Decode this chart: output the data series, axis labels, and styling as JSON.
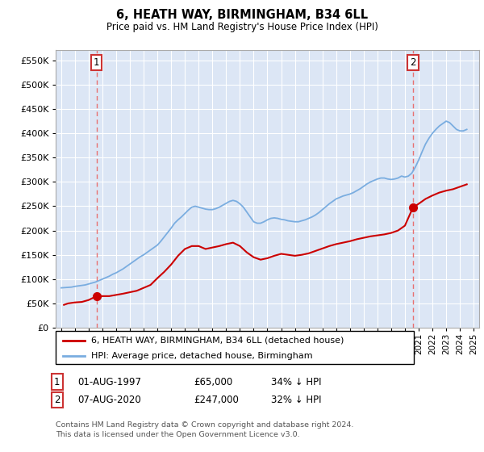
{
  "title": "6, HEATH WAY, BIRMINGHAM, B34 6LL",
  "subtitle": "Price paid vs. HM Land Registry's House Price Index (HPI)",
  "background_color": "#dce6f5",
  "plot_bg_color": "#dce6f5",
  "yticks": [
    0,
    50000,
    100000,
    150000,
    200000,
    250000,
    300000,
    350000,
    400000,
    450000,
    500000,
    550000
  ],
  "ylim": [
    0,
    572000
  ],
  "xlim_start": 1994.6,
  "xlim_end": 2025.4,
  "xtick_years": [
    1995,
    1996,
    1997,
    1998,
    1999,
    2000,
    2001,
    2002,
    2003,
    2004,
    2005,
    2006,
    2007,
    2008,
    2009,
    2010,
    2011,
    2012,
    2013,
    2014,
    2015,
    2016,
    2017,
    2018,
    2019,
    2020,
    2021,
    2022,
    2023,
    2024,
    2025
  ],
  "red_line_color": "#cc0000",
  "blue_line_color": "#7aade0",
  "dashed_line_color": "#e87070",
  "marker_color": "#cc0000",
  "transaction1": {
    "year": 1997.58,
    "price": 65000,
    "label": "1"
  },
  "transaction2": {
    "year": 2020.58,
    "price": 247000,
    "label": "2"
  },
  "legend_label_red": "6, HEATH WAY, BIRMINGHAM, B34 6LL (detached house)",
  "legend_label_blue": "HPI: Average price, detached house, Birmingham",
  "table_row1": [
    "1",
    "01-AUG-1997",
    "£65,000",
    "34% ↓ HPI"
  ],
  "table_row2": [
    "2",
    "07-AUG-2020",
    "£247,000",
    "32% ↓ HPI"
  ],
  "footer": "Contains HM Land Registry data © Crown copyright and database right 2024.\nThis data is licensed under the Open Government Licence v3.0.",
  "hpi_data_x": [
    1995.0,
    1995.25,
    1995.5,
    1995.75,
    1996.0,
    1996.25,
    1996.5,
    1996.75,
    1997.0,
    1997.25,
    1997.5,
    1997.75,
    1998.0,
    1998.25,
    1998.5,
    1998.75,
    1999.0,
    1999.25,
    1999.5,
    1999.75,
    2000.0,
    2000.25,
    2000.5,
    2000.75,
    2001.0,
    2001.25,
    2001.5,
    2001.75,
    2002.0,
    2002.25,
    2002.5,
    2002.75,
    2003.0,
    2003.25,
    2003.5,
    2003.75,
    2004.0,
    2004.25,
    2004.5,
    2004.75,
    2005.0,
    2005.25,
    2005.5,
    2005.75,
    2006.0,
    2006.25,
    2006.5,
    2006.75,
    2007.0,
    2007.25,
    2007.5,
    2007.75,
    2008.0,
    2008.25,
    2008.5,
    2008.75,
    2009.0,
    2009.25,
    2009.5,
    2009.75,
    2010.0,
    2010.25,
    2010.5,
    2010.75,
    2011.0,
    2011.25,
    2011.5,
    2011.75,
    2012.0,
    2012.25,
    2012.5,
    2012.75,
    2013.0,
    2013.25,
    2013.5,
    2013.75,
    2014.0,
    2014.25,
    2014.5,
    2014.75,
    2015.0,
    2015.25,
    2015.5,
    2015.75,
    2016.0,
    2016.25,
    2016.5,
    2016.75,
    2017.0,
    2017.25,
    2017.5,
    2017.75,
    2018.0,
    2018.25,
    2018.5,
    2018.75,
    2019.0,
    2019.25,
    2019.5,
    2019.75,
    2020.0,
    2020.25,
    2020.5,
    2020.75,
    2021.0,
    2021.25,
    2021.5,
    2021.75,
    2022.0,
    2022.25,
    2022.5,
    2022.75,
    2023.0,
    2023.25,
    2023.5,
    2023.75,
    2024.0,
    2024.25,
    2024.5
  ],
  "hpi_data_y": [
    82000,
    82500,
    83000,
    83500,
    85000,
    86000,
    87000,
    88000,
    90000,
    92000,
    94000,
    97000,
    100000,
    103000,
    106000,
    110000,
    113000,
    117000,
    121000,
    126000,
    131000,
    136000,
    141000,
    146000,
    150000,
    155000,
    160000,
    165000,
    170000,
    178000,
    187000,
    196000,
    205000,
    215000,
    222000,
    228000,
    235000,
    242000,
    248000,
    250000,
    248000,
    246000,
    244000,
    243000,
    243000,
    245000,
    248000,
    252000,
    256000,
    260000,
    262000,
    260000,
    255000,
    248000,
    238000,
    228000,
    218000,
    215000,
    215000,
    218000,
    222000,
    225000,
    226000,
    225000,
    223000,
    222000,
    220000,
    219000,
    218000,
    218000,
    220000,
    222000,
    225000,
    228000,
    232000,
    237000,
    243000,
    249000,
    255000,
    260000,
    265000,
    268000,
    271000,
    273000,
    275000,
    278000,
    282000,
    286000,
    291000,
    296000,
    300000,
    303000,
    306000,
    308000,
    308000,
    306000,
    305000,
    306000,
    308000,
    312000,
    310000,
    312000,
    318000,
    330000,
    345000,
    362000,
    378000,
    390000,
    400000,
    408000,
    415000,
    420000,
    425000,
    422000,
    415000,
    408000,
    405000,
    405000,
    408000
  ],
  "price_data_x": [
    1995.2,
    1995.5,
    1996.0,
    1996.5,
    1997.0,
    1997.58,
    1998.5,
    1999.5,
    2000.5,
    2001.5,
    2002.0,
    2002.5,
    2003.0,
    2003.5,
    2004.0,
    2004.5,
    2005.0,
    2005.5,
    2006.0,
    2006.5,
    2007.0,
    2007.5,
    2008.0,
    2008.5,
    2009.0,
    2009.5,
    2010.0,
    2010.5,
    2011.0,
    2011.5,
    2012.0,
    2012.5,
    2013.0,
    2013.5,
    2014.0,
    2014.5,
    2015.0,
    2015.5,
    2016.0,
    2016.5,
    2017.0,
    2017.5,
    2018.0,
    2018.5,
    2019.0,
    2019.5,
    2020.0,
    2020.58,
    2021.0,
    2021.5,
    2022.0,
    2022.5,
    2023.0,
    2023.5,
    2024.0,
    2024.5
  ],
  "price_data_y": [
    47000,
    50000,
    52000,
    53000,
    57000,
    65000,
    65000,
    70000,
    76000,
    88000,
    102000,
    115000,
    130000,
    148000,
    162000,
    168000,
    168000,
    162000,
    165000,
    168000,
    172000,
    175000,
    168000,
    155000,
    145000,
    140000,
    143000,
    148000,
    152000,
    150000,
    148000,
    150000,
    153000,
    158000,
    163000,
    168000,
    172000,
    175000,
    178000,
    182000,
    185000,
    188000,
    190000,
    192000,
    195000,
    200000,
    210000,
    247000,
    255000,
    265000,
    272000,
    278000,
    282000,
    285000,
    290000,
    295000
  ]
}
